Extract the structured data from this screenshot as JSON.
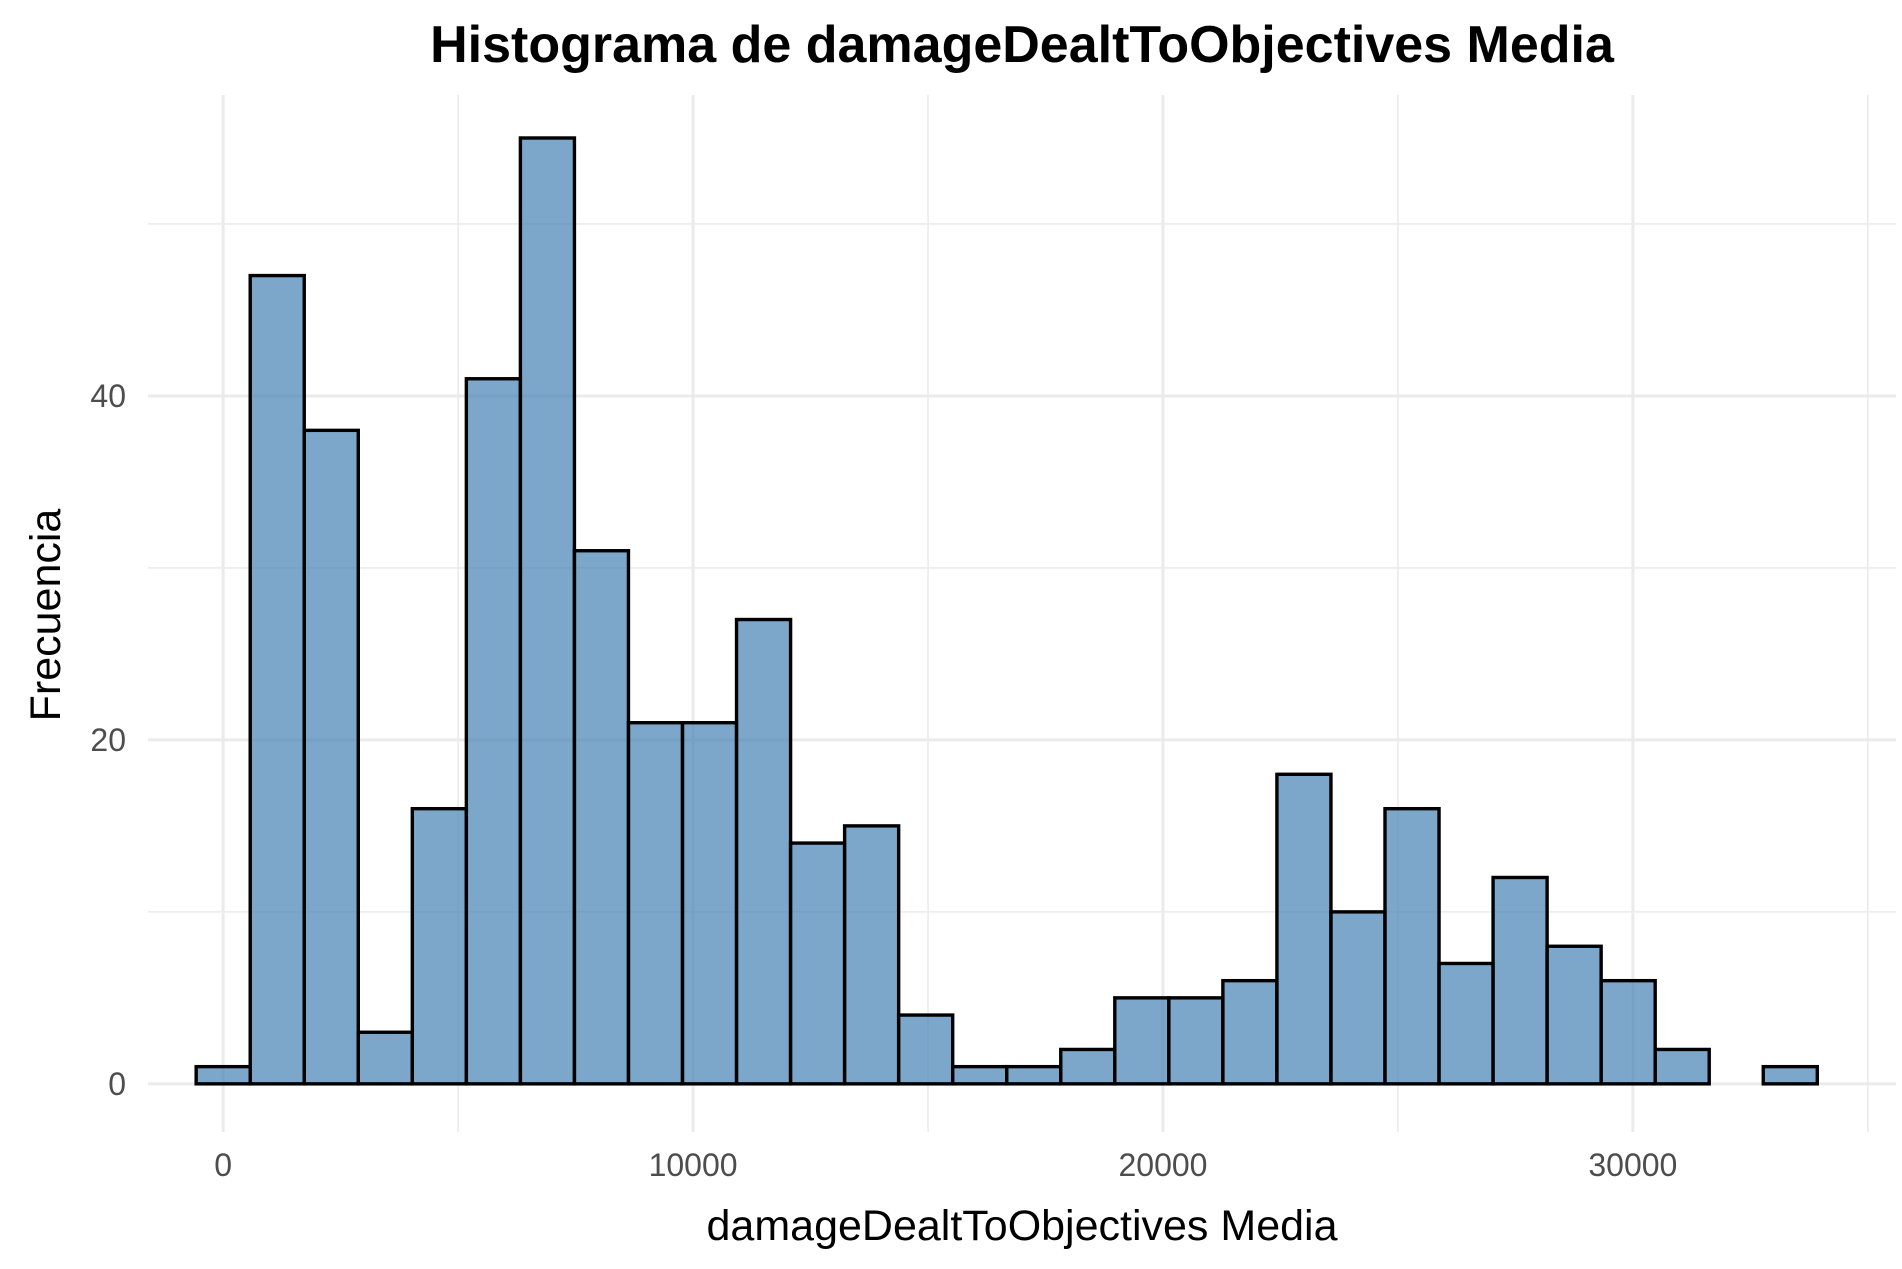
{
  "chart_data": {
    "type": "bar",
    "title": "Histograma de damageDealtToObjectives Media",
    "xlabel": "damageDealtToObjectives Media",
    "ylabel": "Frecuencia",
    "xlim": [
      -1600,
      35600
    ],
    "ylim": [
      -2.8,
      57.5
    ],
    "x_ticks": [
      0,
      10000,
      20000,
      30000
    ],
    "x_tick_labels": [
      "0",
      "10000",
      "20000",
      "30000"
    ],
    "y_ticks": [
      0,
      20,
      40
    ],
    "y_tick_labels": [
      "0",
      "20",
      "40"
    ],
    "grid": true,
    "bin_width": 1150,
    "bin_start": -575,
    "values": [
      1,
      47,
      38,
      3,
      16,
      41,
      55,
      31,
      21,
      21,
      27,
      14,
      15,
      4,
      1,
      1,
      2,
      5,
      5,
      6,
      18,
      10,
      16,
      7,
      12,
      8,
      6,
      2,
      0,
      1
    ],
    "bar_color": "#4682b4",
    "bar_edge_color": "#000000"
  }
}
